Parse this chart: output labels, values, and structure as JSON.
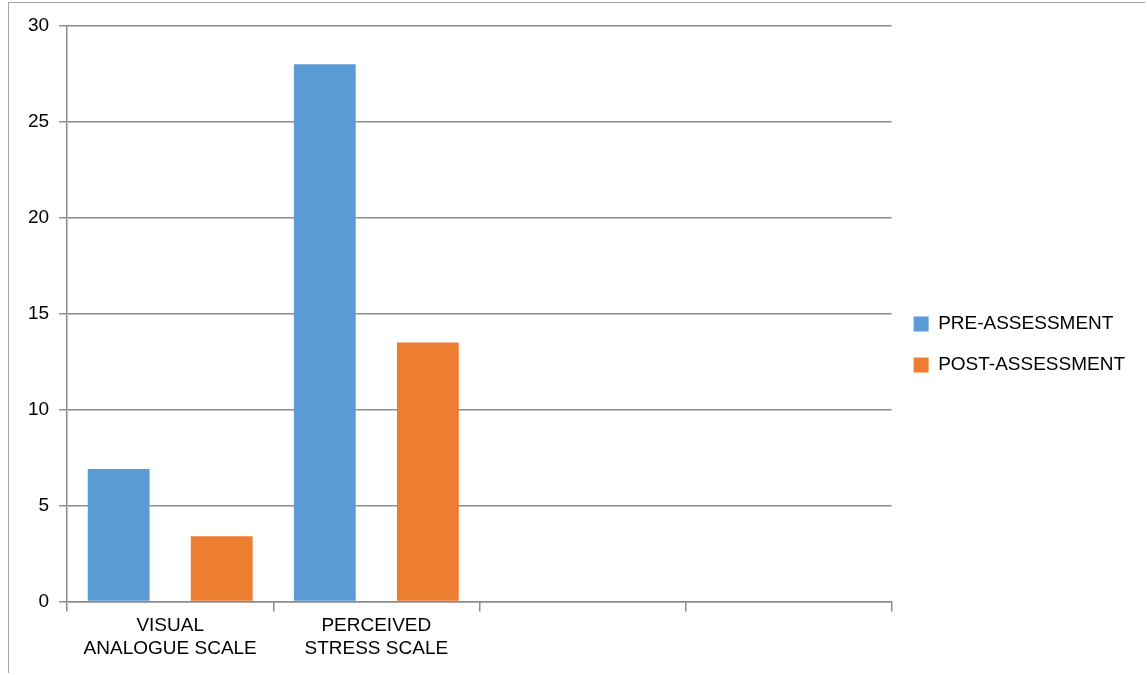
{
  "chart_data": {
    "type": "bar",
    "categories": [
      "VISUAL ANALOGUE SCALE",
      "PERCEIVED STRESS SCALE",
      null,
      null
    ],
    "series": [
      {
        "name": "PRE-ASSESSMENT",
        "color": "#5b9bd5",
        "values": [
          6.9,
          28.0,
          null,
          null
        ]
      },
      {
        "name": "POST-ASSESSMENT",
        "color": "#ed7d31",
        "values": [
          3.4,
          13.5,
          null,
          null
        ]
      }
    ],
    "ylim": [
      0,
      30
    ],
    "yticks": [
      0,
      5,
      10,
      15,
      20,
      25,
      30
    ],
    "grid": "y",
    "legend": "right"
  }
}
